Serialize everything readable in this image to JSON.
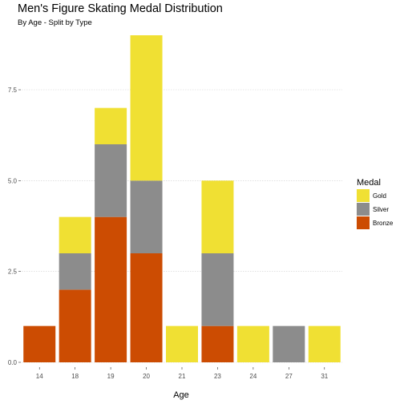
{
  "chart_data": {
    "type": "bar",
    "stacked": true,
    "title": "Men's Figure Skating Medal Distribution",
    "subtitle": "By Age - Split by Type",
    "xlabel": "Age",
    "ylabel": "",
    "categories": [
      "14",
      "18",
      "19",
      "20",
      "21",
      "23",
      "24",
      "27",
      "31"
    ],
    "series": [
      {
        "name": "Bronze",
        "color": "#cc4c02",
        "values": [
          1,
          2,
          4,
          3,
          0,
          1,
          0,
          0,
          0
        ]
      },
      {
        "name": "Silver",
        "color": "#8c8c8c",
        "values": [
          0,
          1,
          2,
          2,
          0,
          2,
          0,
          1,
          0
        ]
      },
      {
        "name": "Gold",
        "color": "#f0e033",
        "values": [
          0,
          1,
          1,
          4,
          1,
          2,
          1,
          0,
          1
        ]
      }
    ],
    "ylim": [
      0,
      9
    ],
    "yticks": [
      0,
      2.5,
      5,
      7.5
    ],
    "ytick_labels": [
      "0.0",
      "2.5",
      "5.0",
      "7.5"
    ],
    "legend": {
      "title": "Medal",
      "placement": "right",
      "entries": [
        "Gold",
        "Silver",
        "Bronze"
      ]
    },
    "grid": true
  }
}
